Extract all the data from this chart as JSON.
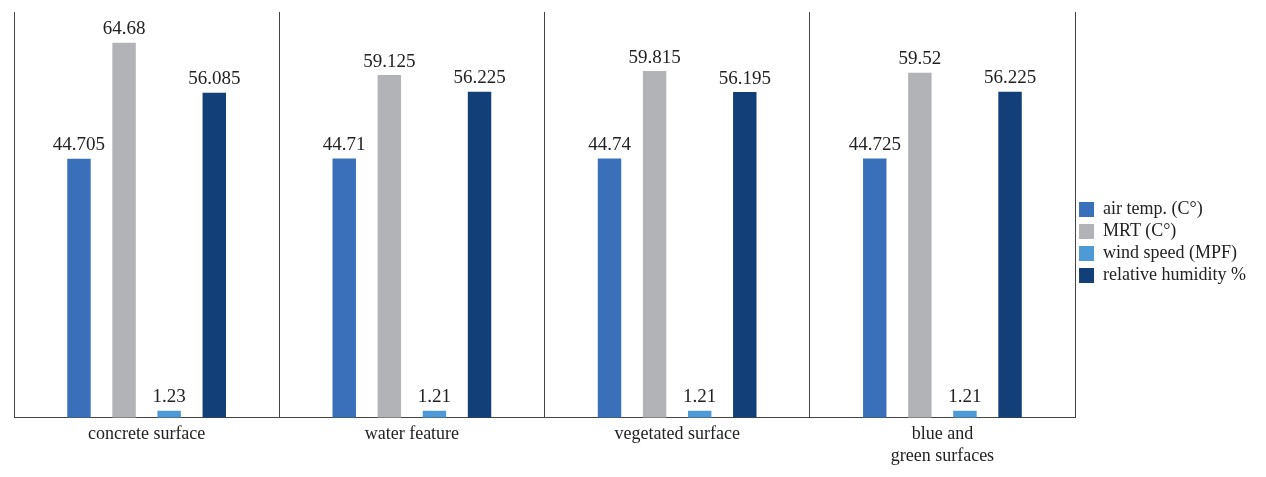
{
  "chart_data": {
    "type": "bar",
    "categories": [
      "concrete surface",
      "water feature",
      "vegetated surface",
      "blue and green surfaces"
    ],
    "series": [
      {
        "name": "air temp. (C°)",
        "color": "#3a70b9",
        "values": [
          44.705,
          44.71,
          44.74,
          44.725
        ]
      },
      {
        "name": "MRT (C°)",
        "color": "#b2b3b6",
        "values": [
          64.68,
          59.125,
          59.815,
          59.52
        ]
      },
      {
        "name": "wind speed (MPF)",
        "color": "#4d9ad6",
        "values": [
          1.23,
          1.21,
          1.21,
          1.21
        ]
      },
      {
        "name": "relative humidity %",
        "color": "#123f78",
        "values": [
          56.085,
          56.225,
          56.195,
          56.225
        ]
      }
    ],
    "ylim": [
      0,
      70
    ],
    "data_labels": true,
    "grid": "x",
    "legend": "right",
    "tick_labels": "x"
  }
}
